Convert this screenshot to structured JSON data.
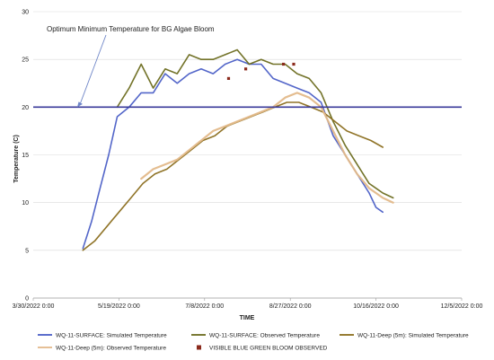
{
  "chart_data": {
    "type": "line",
    "title": "",
    "xlabel": "TIME",
    "ylabel": "Temperature (C)",
    "xlim": [
      "2022-03-30",
      "2022-12-05"
    ],
    "ylim": [
      0,
      30
    ],
    "x_tick_labels": [
      "3/30/2022 0:00",
      "5/19/2022 0:00",
      "7/8/2022 0:00",
      "8/27/2022 0:00",
      "10/16/2022 0:00",
      "12/5/2022 0:00"
    ],
    "y_tick_labels": [
      "0",
      "5",
      "10",
      "15",
      "20",
      "25",
      "30"
    ],
    "threshold": {
      "value": 20,
      "label": "Optimum Minimum Temperature for BG Algae Bloom",
      "color": "#3a3a9a"
    },
    "legend_position": "bottom",
    "series": [
      {
        "name": "WQ-11-SURFACE: Simulated Temperature",
        "color": "#4a5ec6",
        "x": [
          "2022-04-28",
          "2022-05-03",
          "2022-05-08",
          "2022-05-13",
          "2022-05-18",
          "2022-05-25",
          "2022-06-01",
          "2022-06-08",
          "2022-06-15",
          "2022-06-22",
          "2022-06-29",
          "2022-07-06",
          "2022-07-13",
          "2022-07-20",
          "2022-07-27",
          "2022-08-03",
          "2022-08-10",
          "2022-08-17",
          "2022-08-24",
          "2022-08-31",
          "2022-09-07",
          "2022-09-14",
          "2022-09-21",
          "2022-09-28",
          "2022-10-05",
          "2022-10-12",
          "2022-10-16",
          "2022-10-20"
        ],
        "y": [
          5.2,
          8.0,
          11.5,
          15.0,
          19.0,
          20.0,
          21.5,
          21.5,
          23.5,
          22.5,
          23.5,
          24.0,
          23.5,
          24.5,
          25.0,
          24.5,
          24.5,
          23.0,
          22.5,
          22.0,
          21.5,
          20.5,
          17.0,
          15.0,
          13.0,
          11.0,
          9.5,
          9.0
        ]
      },
      {
        "name": "WQ-11-SURFACE: Observed Temperature",
        "color": "#6b6b1e",
        "x": [
          "2022-05-18",
          "2022-05-25",
          "2022-06-01",
          "2022-06-08",
          "2022-06-15",
          "2022-06-22",
          "2022-06-29",
          "2022-07-06",
          "2022-07-13",
          "2022-07-20",
          "2022-07-27",
          "2022-08-03",
          "2022-08-10",
          "2022-08-17",
          "2022-08-24",
          "2022-08-31",
          "2022-09-07",
          "2022-09-14",
          "2022-09-21",
          "2022-09-28",
          "2022-10-05",
          "2022-10-12",
          "2022-10-16",
          "2022-10-20",
          "2022-10-26"
        ],
        "y": [
          20.0,
          22.0,
          24.5,
          22.0,
          24.0,
          23.5,
          25.5,
          25.0,
          25.0,
          25.5,
          26.0,
          24.5,
          25.0,
          24.5,
          24.5,
          23.5,
          23.0,
          21.5,
          18.5,
          16.0,
          14.0,
          12.0,
          11.5,
          11.0,
          10.5
        ]
      },
      {
        "name": "WQ-11-Deep (5m): Simulated Temperature",
        "color": "#8a6d1c",
        "x": [
          "2022-04-28",
          "2022-05-05",
          "2022-05-12",
          "2022-05-19",
          "2022-05-26",
          "2022-06-02",
          "2022-06-09",
          "2022-06-16",
          "2022-06-23",
          "2022-06-30",
          "2022-07-07",
          "2022-07-14",
          "2022-07-21",
          "2022-07-28",
          "2022-08-04",
          "2022-08-11",
          "2022-08-18",
          "2022-08-25",
          "2022-09-01",
          "2022-09-08",
          "2022-09-15",
          "2022-09-22",
          "2022-09-29",
          "2022-10-06",
          "2022-10-13",
          "2022-10-20"
        ],
        "y": [
          5.0,
          6.0,
          7.5,
          9.0,
          10.5,
          12.0,
          13.0,
          13.5,
          14.5,
          15.5,
          16.5,
          17.0,
          18.0,
          18.5,
          19.0,
          19.5,
          20.0,
          20.5,
          20.5,
          20.0,
          19.5,
          18.5,
          17.5,
          17.0,
          16.5,
          15.8
        ]
      },
      {
        "name": "WQ-11-Deep (5m): Observed Temperature",
        "color": "#e3b98a",
        "x": [
          "2022-06-01",
          "2022-06-08",
          "2022-06-15",
          "2022-06-22",
          "2022-06-29",
          "2022-07-06",
          "2022-07-13",
          "2022-07-20",
          "2022-07-27",
          "2022-08-03",
          "2022-08-10",
          "2022-08-17",
          "2022-08-24",
          "2022-08-31",
          "2022-09-07",
          "2022-09-14",
          "2022-09-21",
          "2022-09-28",
          "2022-10-05",
          "2022-10-12",
          "2022-10-16",
          "2022-10-20",
          "2022-10-26"
        ],
        "y": [
          12.5,
          13.5,
          14.0,
          14.5,
          15.5,
          16.5,
          17.5,
          18.0,
          18.5,
          19.0,
          19.5,
          20.0,
          21.0,
          21.5,
          21.0,
          20.0,
          17.5,
          15.0,
          13.0,
          11.5,
          11.0,
          10.5,
          10.0
        ]
      }
    ],
    "bloom_observations": {
      "name": "VISIBLE BLUE GREEN BLOOM OBSERVED",
      "color": "#8b2a1c",
      "points": [
        {
          "x": "2022-07-22",
          "y": 23.0
        },
        {
          "x": "2022-08-01",
          "y": 24.0
        },
        {
          "x": "2022-08-23",
          "y": 24.5
        },
        {
          "x": "2022-08-29",
          "y": 24.5
        }
      ]
    }
  }
}
